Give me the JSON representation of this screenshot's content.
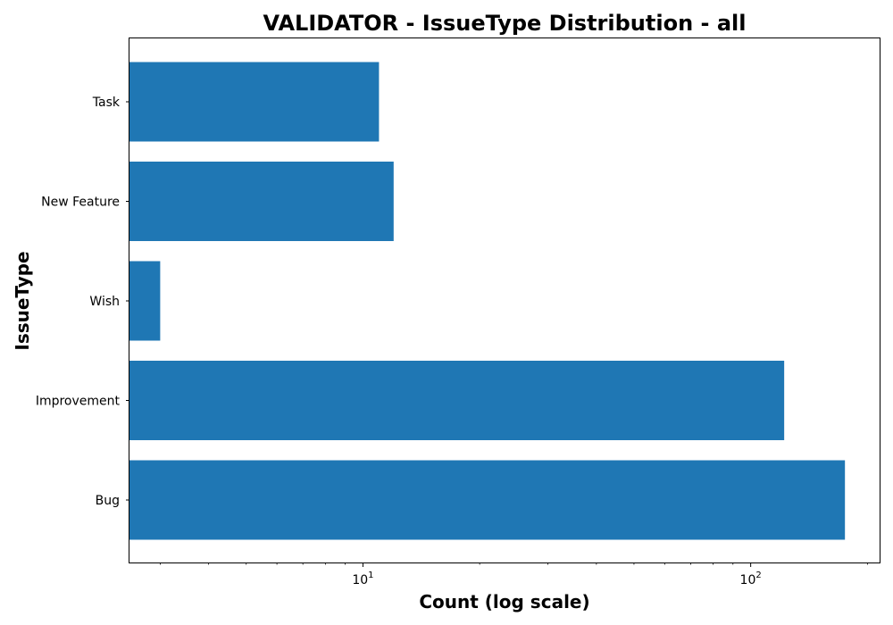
{
  "chart_data": {
    "type": "bar",
    "orientation": "horizontal",
    "title": "VALIDATOR - IssueType Distribution - all",
    "xlabel": "Count (log scale)",
    "ylabel": "IssueType",
    "xscale": "log",
    "xlim": [
      2.5,
      215
    ],
    "grid": false,
    "categories": [
      "Bug",
      "Improvement",
      "Wish",
      "New Feature",
      "Task"
    ],
    "values": [
      175,
      122,
      3,
      12,
      11
    ],
    "x_ticks": [
      {
        "value": 10,
        "base": "10",
        "exp": "1"
      },
      {
        "value": 100,
        "base": "10",
        "exp": "2"
      }
    ],
    "bar_color": "#1f77b4"
  }
}
